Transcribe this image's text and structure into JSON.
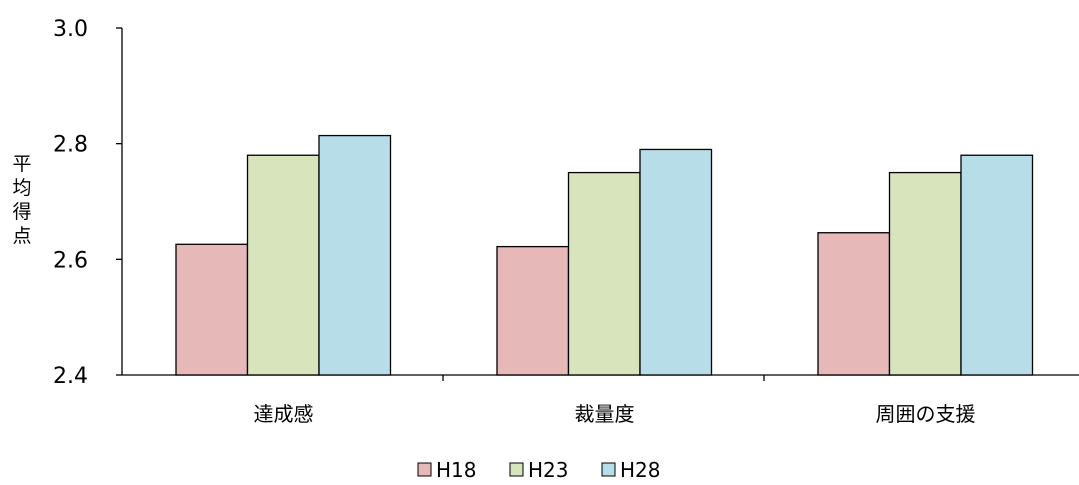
{
  "chart_data": {
    "type": "bar",
    "title": "",
    "xlabel": "",
    "ylabel": "平均得点",
    "categories": [
      "達成感",
      "裁量度",
      "周囲の支援"
    ],
    "series": [
      {
        "name": "H18",
        "values": [
          2.626,
          2.622,
          2.646
        ],
        "color": "#e6b8b7"
      },
      {
        "name": "H23",
        "values": [
          2.78,
          2.75,
          2.75
        ],
        "color": "#d8e4bc"
      },
      {
        "name": "H28",
        "values": [
          2.814,
          2.79,
          2.78
        ],
        "color": "#b7dee8"
      }
    ],
    "ylim": [
      2.4,
      3.0
    ],
    "yticks": [
      "2.4",
      "2.6",
      "2.8",
      "3.0"
    ],
    "grid": false,
    "legend_position": "bottom"
  }
}
